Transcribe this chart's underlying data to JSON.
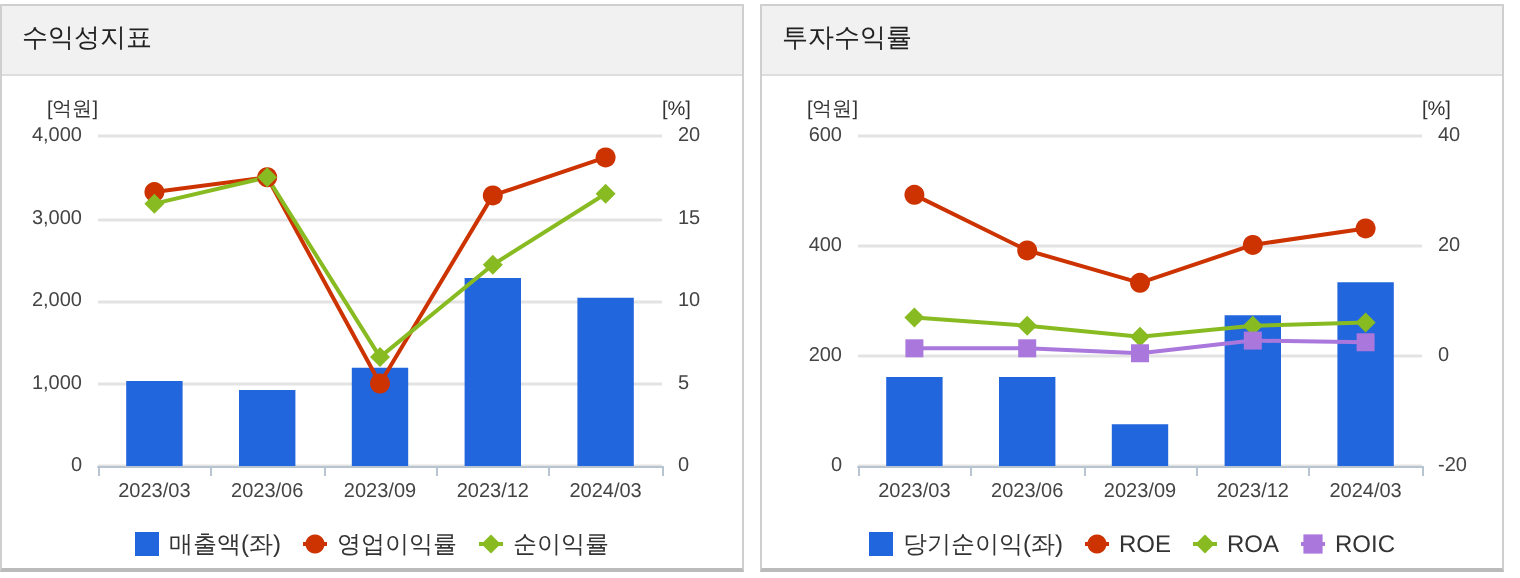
{
  "chart_data": [
    {
      "type": "bar",
      "title": "수익성지표",
      "ylabel": "[억원]",
      "y2label": "[%]",
      "categories": [
        "2023/03",
        "2023/06",
        "2023/09",
        "2023/12",
        "2024/03"
      ],
      "series": [
        {
          "name": "매출액(좌)",
          "color": "#2266dd",
          "values": [
            1030,
            920,
            1190,
            2280,
            2040
          ]
        },
        {
          "name": "영업이익률",
          "type": "line",
          "axis": "y2",
          "marker": "circle",
          "color": "#cc3300",
          "values": [
            16.6,
            17.5,
            5.0,
            16.4,
            18.7
          ]
        },
        {
          "name": "순이익률",
          "type": "line",
          "axis": "y2",
          "marker": "diamond",
          "color": "#88bb22",
          "values": [
            15.9,
            17.5,
            6.6,
            12.2,
            16.5
          ]
        }
      ],
      "ylim": [
        0,
        4000
      ],
      "yticks": [
        0,
        {
          "value": 1000,
          "label": "1,000"
        },
        {
          "value": 2000,
          "label": "2,000"
        },
        {
          "value": 3000,
          "label": "3,000"
        },
        {
          "value": 4000,
          "label": "4,000"
        }
      ],
      "y2lim": [
        0,
        20
      ],
      "y2ticks": [
        0,
        5,
        10,
        15,
        20
      ],
      "grid": "y",
      "legend": "bottom"
    },
    {
      "type": "bar",
      "title": "투자수익률",
      "ylabel": "[억원]",
      "y2label": "[%]",
      "categories": [
        "2023/03",
        "2023/06",
        "2023/09",
        "2023/12",
        "2024/03"
      ],
      "series": [
        {
          "name": "당기순이익(좌)",
          "color": "#2266dd",
          "values": [
            162,
            162,
            76,
            274,
            334
          ]
        },
        {
          "name": "ROE",
          "type": "line",
          "axis": "y2",
          "marker": "circle",
          "color": "#cc3300",
          "values": [
            29.3,
            19.2,
            13.3,
            20.2,
            23.2
          ]
        },
        {
          "name": "ROA",
          "type": "line",
          "axis": "y2",
          "marker": "diamond",
          "color": "#88bb22",
          "values": [
            7.0,
            5.5,
            3.5,
            5.5,
            6.1
          ]
        },
        {
          "name": "ROIC",
          "type": "line",
          "axis": "y2",
          "marker": "square",
          "color": "#aa77dd",
          "values": [
            1.4,
            1.4,
            0.5,
            2.8,
            2.5
          ]
        }
      ],
      "ylim": [
        0,
        600
      ],
      "yticks": [
        0,
        200,
        400,
        600
      ],
      "y2lim": [
        -20,
        40
      ],
      "y2ticks": [
        -20,
        0,
        20,
        40
      ],
      "grid": "y",
      "legend": "bottom"
    }
  ]
}
